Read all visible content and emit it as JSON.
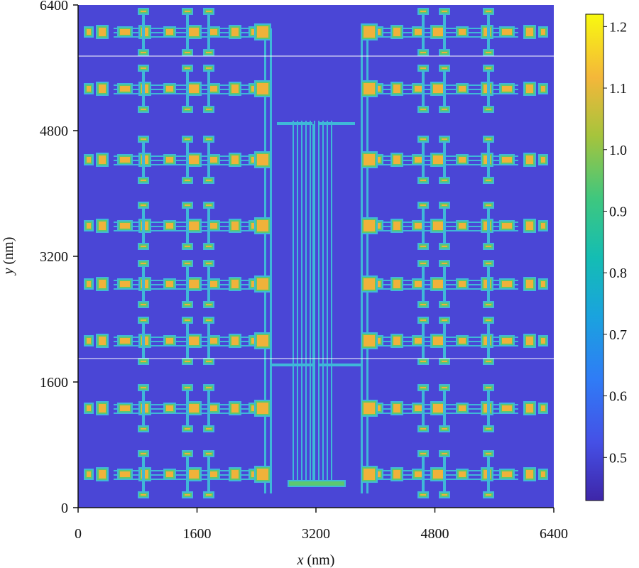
{
  "chart_data": {
    "type": "heatmap",
    "title": "",
    "xlabel": {
      "var": "x",
      "unit": " (nm)"
    },
    "ylabel": {
      "var": "y",
      "unit": " (nm)"
    },
    "xlim": [
      0,
      6400
    ],
    "ylim": [
      0,
      6400
    ],
    "x_ticks": [
      "0",
      "1600",
      "3200",
      "4800",
      "6400"
    ],
    "y_ticks": [
      "0",
      "1600",
      "3200",
      "4800",
      "6400"
    ],
    "colorbar": {
      "range": [
        0.43,
        1.22
      ],
      "ticks": [
        "0.5",
        "0.6",
        "0.7",
        "0.8",
        "0.9",
        "1.0",
        "1.1",
        "1.2"
      ],
      "colormap": "parula"
    },
    "background_value": 0.47,
    "description_values": {
      "substrate": 0.47,
      "interconnect_lines": 0.75,
      "device_pads": 0.92,
      "pad_cores": 1.08
    }
  },
  "colors": {
    "substrate": "#4a46d6",
    "line": "#3fb8d8",
    "pad": "#5cc870",
    "core": "#f0b23a"
  }
}
